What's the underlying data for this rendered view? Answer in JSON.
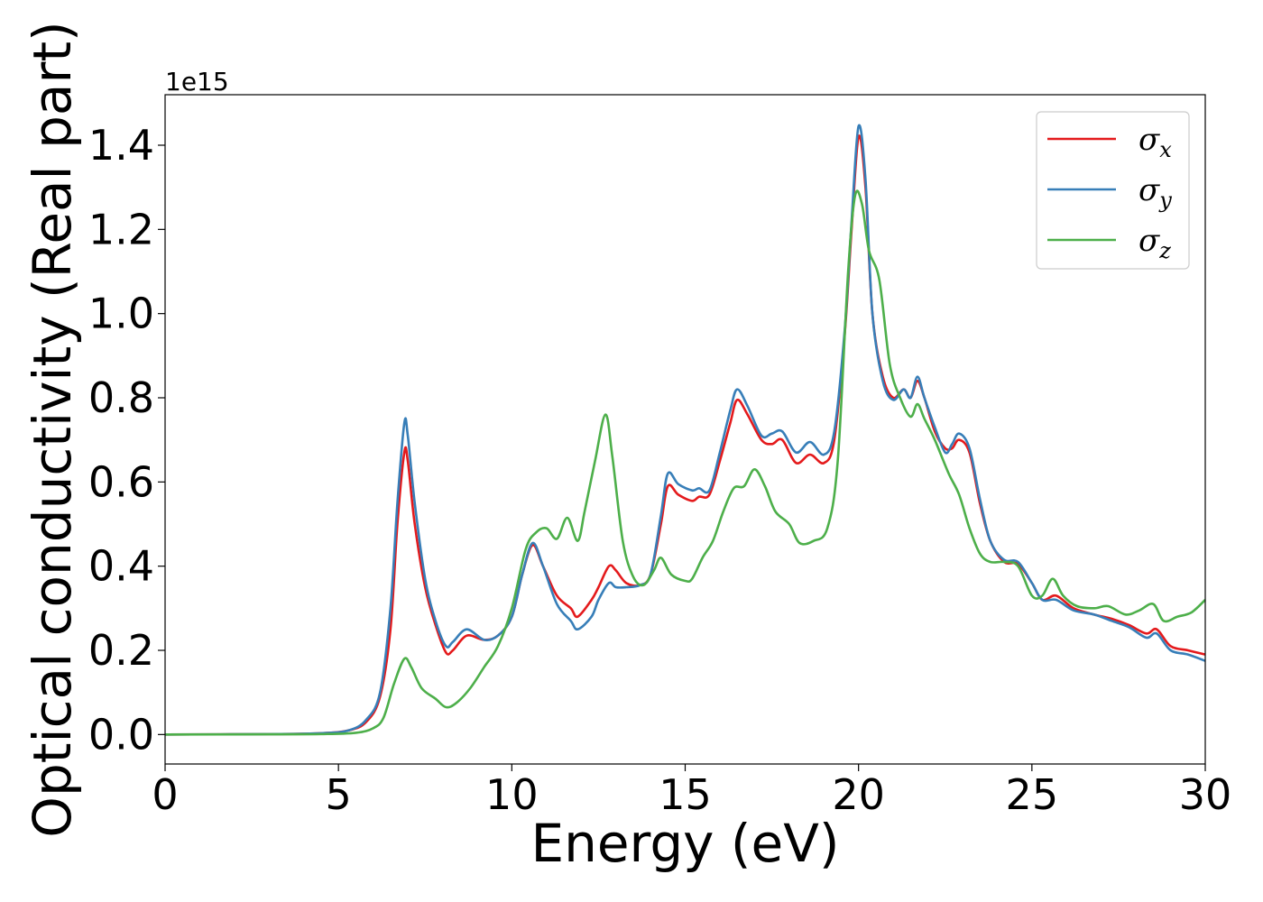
{
  "chart_data": {
    "type": "line",
    "title": "",
    "xlabel": "Energy (eV)",
    "ylabel": "Optical conductivity (Real part)",
    "y_offset_label": "1e15",
    "xlim": [
      0,
      30
    ],
    "ylim": [
      -0.07,
      1.52
    ],
    "xticks": [
      0,
      5,
      10,
      15,
      20,
      25,
      30
    ],
    "xtick_labels": [
      "0",
      "5",
      "10",
      "15",
      "20",
      "25",
      "30"
    ],
    "yticks": [
      0.0,
      0.2,
      0.4,
      0.6,
      0.8,
      1.0,
      1.2,
      1.4
    ],
    "ytick_labels": [
      "0.0",
      "0.2",
      "0.4",
      "0.6",
      "0.8",
      "1.0",
      "1.2",
      "1.4"
    ],
    "grid": false,
    "legend_position": "top-right",
    "series": [
      {
        "name": "σx",
        "symbol": "σ",
        "subscript": "x",
        "color": "#e41a1c",
        "points": [
          [
            0,
            0
          ],
          [
            3,
            0.001
          ],
          [
            4.5,
            0.003
          ],
          [
            5.3,
            0.01
          ],
          [
            5.8,
            0.03
          ],
          [
            6.2,
            0.09
          ],
          [
            6.5,
            0.25
          ],
          [
            6.7,
            0.5
          ],
          [
            6.9,
            0.67
          ],
          [
            7.0,
            0.65
          ],
          [
            7.2,
            0.5
          ],
          [
            7.5,
            0.35
          ],
          [
            7.8,
            0.26
          ],
          [
            8.1,
            0.195
          ],
          [
            8.3,
            0.2
          ],
          [
            8.7,
            0.235
          ],
          [
            9.2,
            0.225
          ],
          [
            9.6,
            0.235
          ],
          [
            10.0,
            0.28
          ],
          [
            10.3,
            0.38
          ],
          [
            10.6,
            0.45
          ],
          [
            10.9,
            0.4
          ],
          [
            11.3,
            0.33
          ],
          [
            11.7,
            0.3
          ],
          [
            11.9,
            0.28
          ],
          [
            12.3,
            0.32
          ],
          [
            12.5,
            0.35
          ],
          [
            12.8,
            0.4
          ],
          [
            13.0,
            0.39
          ],
          [
            13.3,
            0.36
          ],
          [
            13.7,
            0.355
          ],
          [
            14.0,
            0.38
          ],
          [
            14.3,
            0.5
          ],
          [
            14.5,
            0.59
          ],
          [
            14.8,
            0.57
          ],
          [
            15.2,
            0.555
          ],
          [
            15.4,
            0.565
          ],
          [
            15.7,
            0.57
          ],
          [
            16.0,
            0.65
          ],
          [
            16.3,
            0.74
          ],
          [
            16.5,
            0.795
          ],
          [
            16.8,
            0.76
          ],
          [
            17.2,
            0.7
          ],
          [
            17.5,
            0.69
          ],
          [
            17.8,
            0.7
          ],
          [
            18.2,
            0.645
          ],
          [
            18.6,
            0.665
          ],
          [
            19.0,
            0.645
          ],
          [
            19.3,
            0.7
          ],
          [
            19.6,
            0.95
          ],
          [
            19.8,
            1.2
          ],
          [
            20.0,
            1.42
          ],
          [
            20.2,
            1.3
          ],
          [
            20.4,
            1.0
          ],
          [
            20.7,
            0.85
          ],
          [
            21.0,
            0.8
          ],
          [
            21.3,
            0.82
          ],
          [
            21.5,
            0.8
          ],
          [
            21.7,
            0.84
          ],
          [
            21.9,
            0.8
          ],
          [
            22.2,
            0.72
          ],
          [
            22.5,
            0.68
          ],
          [
            22.7,
            0.68
          ],
          [
            22.9,
            0.7
          ],
          [
            23.2,
            0.67
          ],
          [
            23.5,
            0.55
          ],
          [
            23.8,
            0.46
          ],
          [
            24.2,
            0.41
          ],
          [
            24.6,
            0.405
          ],
          [
            25.0,
            0.36
          ],
          [
            25.3,
            0.32
          ],
          [
            25.7,
            0.33
          ],
          [
            26.2,
            0.3
          ],
          [
            26.8,
            0.285
          ],
          [
            27.3,
            0.275
          ],
          [
            27.8,
            0.26
          ],
          [
            28.3,
            0.24
          ],
          [
            28.6,
            0.25
          ],
          [
            29.0,
            0.21
          ],
          [
            29.5,
            0.2
          ],
          [
            30.0,
            0.19
          ]
        ]
      },
      {
        "name": "σy",
        "symbol": "σ",
        "subscript": "y",
        "color": "#377eb8",
        "points": [
          [
            0,
            0
          ],
          [
            3,
            0.001
          ],
          [
            4.5,
            0.003
          ],
          [
            5.3,
            0.01
          ],
          [
            5.8,
            0.035
          ],
          [
            6.2,
            0.1
          ],
          [
            6.5,
            0.3
          ],
          [
            6.7,
            0.55
          ],
          [
            6.9,
            0.74
          ],
          [
            7.0,
            0.71
          ],
          [
            7.2,
            0.55
          ],
          [
            7.5,
            0.37
          ],
          [
            7.8,
            0.27
          ],
          [
            8.1,
            0.21
          ],
          [
            8.3,
            0.22
          ],
          [
            8.7,
            0.25
          ],
          [
            9.2,
            0.225
          ],
          [
            9.6,
            0.235
          ],
          [
            10.0,
            0.28
          ],
          [
            10.3,
            0.38
          ],
          [
            10.6,
            0.455
          ],
          [
            10.9,
            0.4
          ],
          [
            11.3,
            0.31
          ],
          [
            11.7,
            0.27
          ],
          [
            11.9,
            0.25
          ],
          [
            12.3,
            0.28
          ],
          [
            12.5,
            0.32
          ],
          [
            12.8,
            0.36
          ],
          [
            13.0,
            0.35
          ],
          [
            13.3,
            0.35
          ],
          [
            13.7,
            0.355
          ],
          [
            14.0,
            0.38
          ],
          [
            14.3,
            0.52
          ],
          [
            14.5,
            0.62
          ],
          [
            14.8,
            0.595
          ],
          [
            15.2,
            0.58
          ],
          [
            15.4,
            0.585
          ],
          [
            15.7,
            0.58
          ],
          [
            16.0,
            0.67
          ],
          [
            16.3,
            0.77
          ],
          [
            16.5,
            0.82
          ],
          [
            16.8,
            0.78
          ],
          [
            17.2,
            0.71
          ],
          [
            17.5,
            0.715
          ],
          [
            17.8,
            0.72
          ],
          [
            18.2,
            0.67
          ],
          [
            18.6,
            0.695
          ],
          [
            19.0,
            0.665
          ],
          [
            19.3,
            0.72
          ],
          [
            19.6,
            0.96
          ],
          [
            19.8,
            1.22
          ],
          [
            20.0,
            1.445
          ],
          [
            20.2,
            1.32
          ],
          [
            20.4,
            1.0
          ],
          [
            20.7,
            0.84
          ],
          [
            21.0,
            0.795
          ],
          [
            21.3,
            0.82
          ],
          [
            21.5,
            0.8
          ],
          [
            21.7,
            0.85
          ],
          [
            21.9,
            0.8
          ],
          [
            22.2,
            0.73
          ],
          [
            22.5,
            0.67
          ],
          [
            22.7,
            0.69
          ],
          [
            22.9,
            0.715
          ],
          [
            23.2,
            0.68
          ],
          [
            23.5,
            0.56
          ],
          [
            23.8,
            0.46
          ],
          [
            24.2,
            0.415
          ],
          [
            24.6,
            0.41
          ],
          [
            25.0,
            0.36
          ],
          [
            25.3,
            0.32
          ],
          [
            25.7,
            0.32
          ],
          [
            26.2,
            0.295
          ],
          [
            26.8,
            0.285
          ],
          [
            27.3,
            0.27
          ],
          [
            27.8,
            0.255
          ],
          [
            28.3,
            0.23
          ],
          [
            28.6,
            0.24
          ],
          [
            29.0,
            0.2
          ],
          [
            29.5,
            0.19
          ],
          [
            30.0,
            0.175
          ]
        ]
      },
      {
        "name": "σz",
        "symbol": "σ",
        "subscript": "z",
        "color": "#4daf4a",
        "points": [
          [
            0,
            0
          ],
          [
            3,
            0.0005
          ],
          [
            4.5,
            0.001
          ],
          [
            5.5,
            0.004
          ],
          [
            6.0,
            0.015
          ],
          [
            6.3,
            0.04
          ],
          [
            6.6,
            0.12
          ],
          [
            6.9,
            0.18
          ],
          [
            7.1,
            0.16
          ],
          [
            7.4,
            0.11
          ],
          [
            7.8,
            0.085
          ],
          [
            8.1,
            0.065
          ],
          [
            8.4,
            0.075
          ],
          [
            8.8,
            0.11
          ],
          [
            9.2,
            0.16
          ],
          [
            9.6,
            0.21
          ],
          [
            10.0,
            0.3
          ],
          [
            10.4,
            0.44
          ],
          [
            10.7,
            0.48
          ],
          [
            11.0,
            0.49
          ],
          [
            11.3,
            0.465
          ],
          [
            11.6,
            0.515
          ],
          [
            11.9,
            0.46
          ],
          [
            12.1,
            0.53
          ],
          [
            12.4,
            0.65
          ],
          [
            12.7,
            0.76
          ],
          [
            12.9,
            0.66
          ],
          [
            13.2,
            0.46
          ],
          [
            13.5,
            0.375
          ],
          [
            13.8,
            0.355
          ],
          [
            14.1,
            0.39
          ],
          [
            14.3,
            0.42
          ],
          [
            14.6,
            0.38
          ],
          [
            15.0,
            0.365
          ],
          [
            15.2,
            0.37
          ],
          [
            15.5,
            0.42
          ],
          [
            15.8,
            0.46
          ],
          [
            16.1,
            0.53
          ],
          [
            16.4,
            0.585
          ],
          [
            16.7,
            0.59
          ],
          [
            17.0,
            0.63
          ],
          [
            17.3,
            0.59
          ],
          [
            17.6,
            0.53
          ],
          [
            18.0,
            0.5
          ],
          [
            18.3,
            0.455
          ],
          [
            18.7,
            0.46
          ],
          [
            19.1,
            0.49
          ],
          [
            19.4,
            0.65
          ],
          [
            19.7,
            1.1
          ],
          [
            19.9,
            1.28
          ],
          [
            20.1,
            1.26
          ],
          [
            20.3,
            1.15
          ],
          [
            20.6,
            1.08
          ],
          [
            20.9,
            0.88
          ],
          [
            21.2,
            0.8
          ],
          [
            21.5,
            0.755
          ],
          [
            21.7,
            0.785
          ],
          [
            21.9,
            0.75
          ],
          [
            22.2,
            0.7
          ],
          [
            22.6,
            0.62
          ],
          [
            22.9,
            0.57
          ],
          [
            23.2,
            0.49
          ],
          [
            23.5,
            0.43
          ],
          [
            23.8,
            0.41
          ],
          [
            24.2,
            0.41
          ],
          [
            24.6,
            0.4
          ],
          [
            25.0,
            0.33
          ],
          [
            25.3,
            0.33
          ],
          [
            25.6,
            0.37
          ],
          [
            25.9,
            0.33
          ],
          [
            26.3,
            0.305
          ],
          [
            26.8,
            0.3
          ],
          [
            27.2,
            0.305
          ],
          [
            27.7,
            0.285
          ],
          [
            28.1,
            0.295
          ],
          [
            28.5,
            0.31
          ],
          [
            28.8,
            0.27
          ],
          [
            29.2,
            0.28
          ],
          [
            29.6,
            0.29
          ],
          [
            30.0,
            0.32
          ]
        ]
      }
    ]
  }
}
